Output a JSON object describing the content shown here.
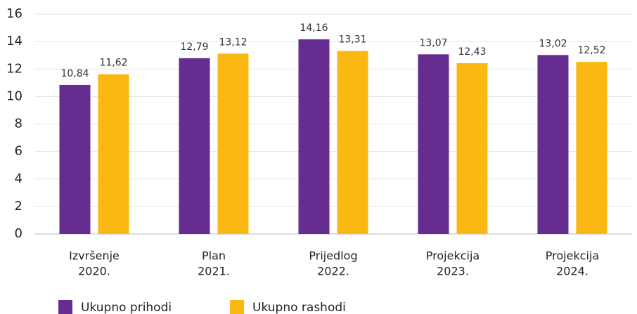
{
  "chart_data": {
    "type": "bar",
    "categories": [
      [
        "Izvršenje",
        "2020."
      ],
      [
        "Plan",
        "2021."
      ],
      [
        "Prijedlog",
        "2022."
      ],
      [
        "Projekcija",
        "2023."
      ],
      [
        "Projekcija",
        "2024."
      ]
    ],
    "series": [
      {
        "name": "Ukupno prihodi",
        "color": "#662d91",
        "values": [
          10.84,
          12.79,
          14.16,
          13.07,
          13.02
        ],
        "value_labels": [
          "10,84",
          "12,79",
          "14,16",
          "13,07",
          "13,02"
        ]
      },
      {
        "name": "Ukupno rashodi",
        "color": "#fbb812",
        "values": [
          11.62,
          13.12,
          13.31,
          12.43,
          12.52
        ],
        "value_labels": [
          "11,62",
          "13,12",
          "13,31",
          "12,43",
          "12,52"
        ]
      }
    ],
    "ylim": [
      0,
      16
    ],
    "yticks": [
      0,
      2,
      4,
      6,
      8,
      10,
      12,
      14,
      16
    ],
    "grid": true
  }
}
